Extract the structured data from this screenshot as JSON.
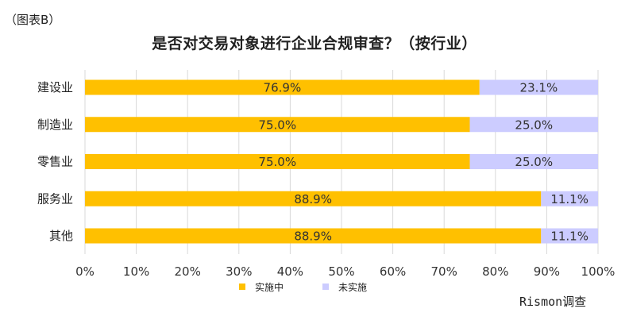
{
  "page_label": "（图表B）",
  "source_note": "Rismon调查",
  "chart_data": {
    "type": "bar",
    "orientation": "horizontal",
    "stacked": true,
    "title": "是否对交易对象进行企业合规审查？（按行业）",
    "categories": [
      "建设业",
      "制造业",
      "零售业",
      "服务业",
      "其他"
    ],
    "series": [
      {
        "name": "实施中",
        "color": "#FFC000",
        "values": [
          76.9,
          75.0,
          75.0,
          88.9,
          88.9
        ],
        "labels": [
          "76.9%",
          "75.0%",
          "75.0%",
          "88.9%",
          "88.9%"
        ]
      },
      {
        "name": "未实施",
        "color": "#CCCCFF",
        "values": [
          23.1,
          25.0,
          25.0,
          11.1,
          11.1
        ],
        "labels": [
          "23.1%",
          "25.0%",
          "25.0%",
          "11.1%",
          "11.1%"
        ]
      }
    ],
    "xlim": [
      0,
      100
    ],
    "xticks": [
      0,
      10,
      20,
      30,
      40,
      50,
      60,
      70,
      80,
      90,
      100
    ],
    "xtick_labels": [
      "0%",
      "10%",
      "20%",
      "30%",
      "40%",
      "50%",
      "60%",
      "70%",
      "80%",
      "90%",
      "100%"
    ],
    "grid": true,
    "legend_position": "bottom"
  }
}
